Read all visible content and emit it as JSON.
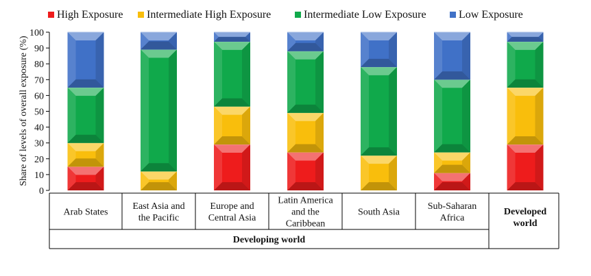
{
  "chart_data": {
    "type": "bar",
    "stacked": true,
    "ylabel": "Share of levels of overall exposure (%)",
    "ylim": [
      0,
      100
    ],
    "yticks": [
      0,
      10,
      20,
      30,
      40,
      50,
      60,
      70,
      80,
      90,
      100
    ],
    "legend_position": "top",
    "categories": [
      {
        "label": "Arab States",
        "bold": false
      },
      {
        "label": "East Asia and the Pacific",
        "bold": false
      },
      {
        "label": "Europe and Central Asia",
        "bold": false
      },
      {
        "label": "Latin America and the Caribbean",
        "bold": false
      },
      {
        "label": "South Asia",
        "bold": false
      },
      {
        "label": "Sub-Saharan Africa",
        "bold": false
      },
      {
        "label": "Developed world",
        "bold": true
      }
    ],
    "group_label": "Developing world",
    "series": [
      {
        "name": "High Exposure",
        "color": "#ee1c1c",
        "values": [
          15,
          0,
          29,
          24,
          0,
          11,
          29
        ]
      },
      {
        "name": "Intermediate High Exposure",
        "color": "#f9be0c",
        "values": [
          15,
          12,
          24,
          25,
          22,
          13,
          36
        ]
      },
      {
        "name": "Intermediate Low Exposure",
        "color": "#10a94b",
        "values": [
          35,
          77,
          41,
          39,
          56,
          46,
          29
        ]
      },
      {
        "name": "Low Exposure",
        "color": "#4071c7",
        "values": [
          35,
          11,
          6,
          12,
          22,
          30,
          6
        ]
      }
    ]
  }
}
